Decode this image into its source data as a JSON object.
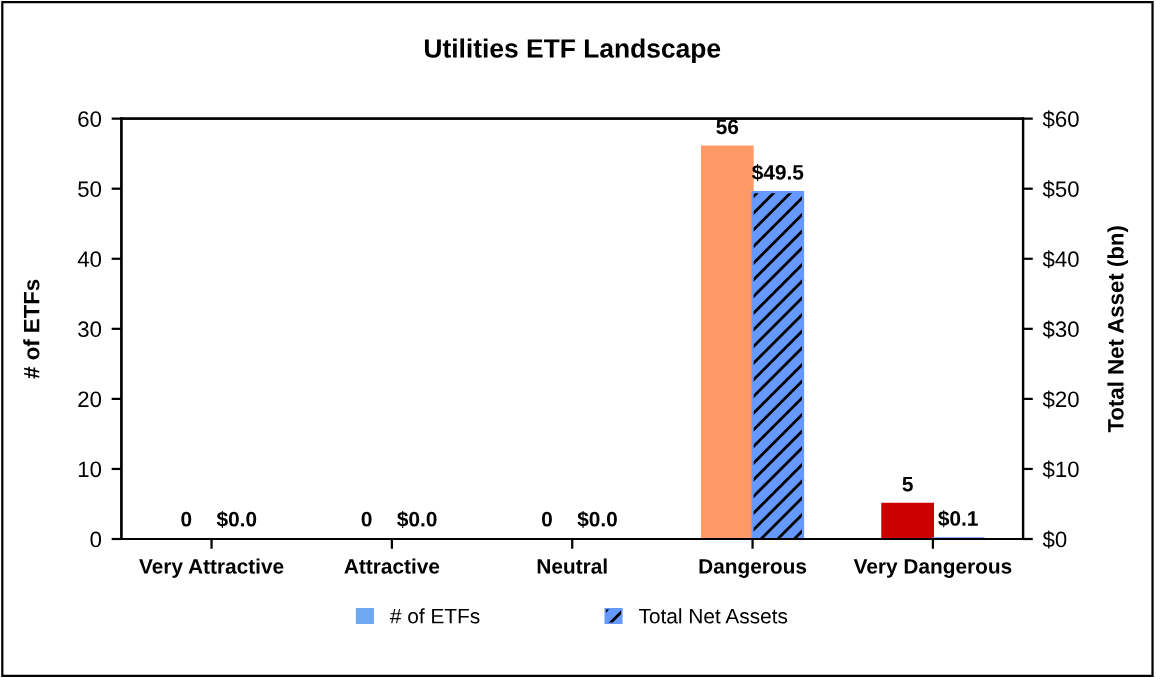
{
  "chart_data": {
    "type": "bar",
    "title": "Utilities ETF Landscape",
    "ylabel": "# of ETFs",
    "y2label": "Total Net Asset (bn)",
    "categories": [
      "Very Attractive",
      "Attractive",
      "Neutral",
      "Dangerous",
      "Very Dangerous"
    ],
    "series": [
      {
        "name": "# of ETFs",
        "color": "#6fa8f0",
        "colors": [
          "#6fa8f0",
          "#6fa8f0",
          "#6fa8f0",
          "#ff9966",
          "#cc0000"
        ],
        "values": [
          0,
          0,
          0,
          56,
          5
        ],
        "value_labels": [
          "0",
          "0",
          "0",
          "56",
          "5"
        ]
      },
      {
        "name": "Total Net Assets",
        "color": "#6699ff",
        "axis": "y2",
        "values": [
          0,
          0,
          0,
          49.5,
          0.1
        ],
        "value_labels": [
          "$0.0",
          "$0.0",
          "$0.0",
          "$49.5",
          "$0.1"
        ]
      }
    ],
    "ylim": [
      0,
      60
    ],
    "yticks": [
      0,
      10,
      20,
      30,
      40,
      50,
      60
    ],
    "y2lim": [
      0,
      60
    ],
    "y2ticks": [
      {
        "value": 0,
        "label": "$0"
      },
      {
        "value": 10,
        "label": "$10"
      },
      {
        "value": 20,
        "label": "$20"
      },
      {
        "value": 30,
        "label": "$30"
      },
      {
        "value": 40,
        "label": "$40"
      },
      {
        "value": 50,
        "label": "$50"
      },
      {
        "value": 60,
        "label": "$60"
      }
    ],
    "legend": "bottom",
    "grid": false
  }
}
